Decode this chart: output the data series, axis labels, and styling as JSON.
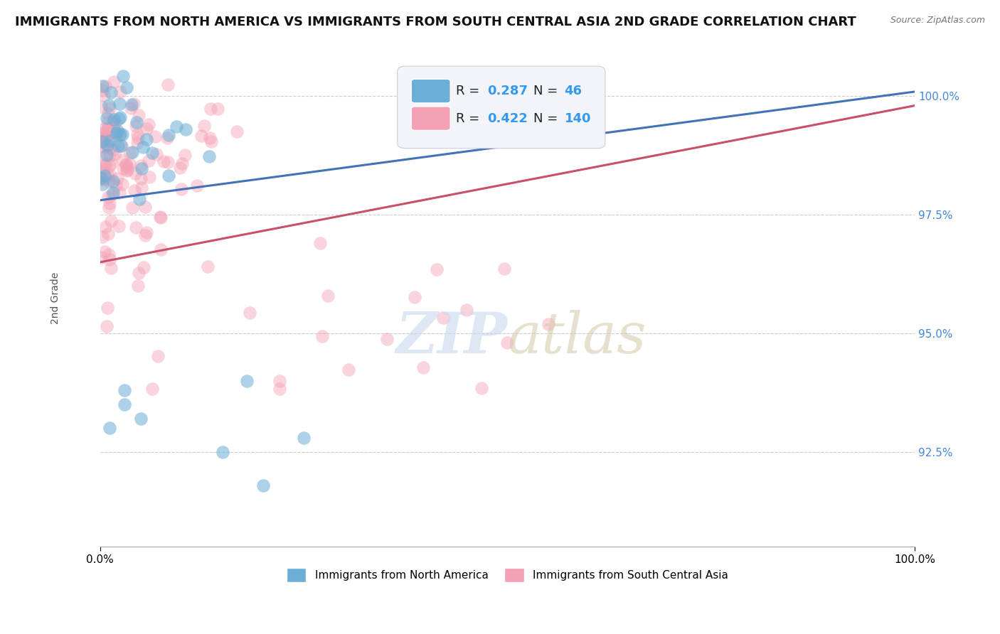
{
  "title": "IMMIGRANTS FROM NORTH AMERICA VS IMMIGRANTS FROM SOUTH CENTRAL ASIA 2ND GRADE CORRELATION CHART",
  "source": "Source: ZipAtlas.com",
  "ylabel": "2nd Grade",
  "xlim": [
    0,
    100
  ],
  "ylim": [
    90.5,
    101.0
  ],
  "ytick_positions": [
    92.5,
    95.0,
    97.5,
    100.0
  ],
  "ytick_labels": [
    "92.5%",
    "95.0%",
    "97.5%",
    "100.0%"
  ],
  "blue_R": 0.287,
  "blue_N": 46,
  "pink_R": 0.422,
  "pink_N": 140,
  "blue_color": "#6baed6",
  "pink_color": "#f4a0b5",
  "blue_line_color": "#4472b8",
  "pink_line_color": "#c8506a",
  "title_fontsize": 13,
  "axis_label_fontsize": 10,
  "tick_fontsize": 11,
  "blue_line_start_y": 97.8,
  "blue_line_end_y": 100.1,
  "pink_line_start_y": 96.5,
  "pink_line_end_y": 99.8
}
